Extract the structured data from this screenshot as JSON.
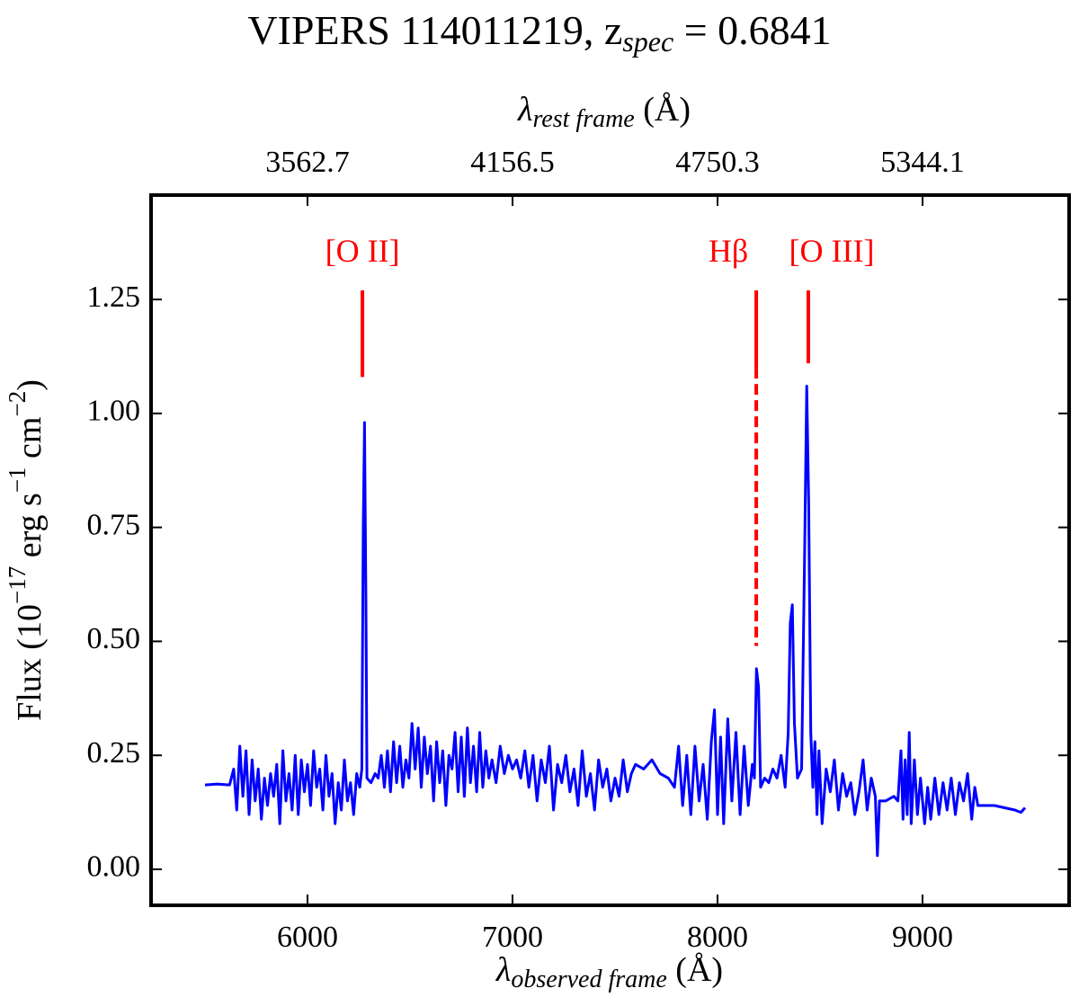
{
  "chart_data": {
    "type": "line",
    "title": [
      "VIPERS 114011219, z",
      "spec",
      " = 0.6841"
    ],
    "xlabel": [
      "λ",
      "observed frame",
      " (Å)"
    ],
    "x2label": [
      "λ",
      "rest frame",
      " (Å)"
    ],
    "ylabel": [
      "Flux (10",
      "−17",
      " erg s",
      "−1",
      " cm",
      "−2",
      ")"
    ],
    "xlim": [
      5237,
      9715
    ],
    "xticks": [
      6000,
      7000,
      8000,
      9000
    ],
    "x2lim": [
      3109.6,
      5768.6
    ],
    "x2ticks": [
      3562.7,
      4156.5,
      4750.3,
      5344.1
    ],
    "ylim": [
      -0.079,
      1.479
    ],
    "yticks": [
      {
        "value": 0,
        "label": "0.00"
      },
      {
        "value": 0.25,
        "label": "0.25"
      },
      {
        "value": 0.5,
        "label": "0.50"
      },
      {
        "value": 0.75,
        "label": "0.75"
      },
      {
        "value": 1,
        "label": "1.00"
      },
      {
        "value": 1.25,
        "label": "1.25"
      }
    ],
    "color": "#0000ff",
    "annotation_color": "#ff0000",
    "annotations": [
      {
        "text": "[O II]",
        "x": 6268,
        "y_top": 1.27,
        "y_bottom": 1.08
      },
      {
        "text": "Hβ",
        "x": 8189,
        "y_top": 1.27,
        "y_bottom": 1.1,
        "dashed_to": 0.49
      },
      {
        "text": "[O III]",
        "x": 8443,
        "y_top": 1.27,
        "y_bottom": 1.11
      }
    ],
    "x": [
      5500,
      5560,
      5620,
      5640,
      5655,
      5670,
      5685,
      5700,
      5715,
      5730,
      5745,
      5760,
      5775,
      5790,
      5805,
      5820,
      5835,
      5850,
      5865,
      5880,
      5895,
      5910,
      5925,
      5940,
      5955,
      5970,
      5985,
      6000,
      6015,
      6030,
      6045,
      6060,
      6075,
      6090,
      6105,
      6120,
      6135,
      6150,
      6165,
      6180,
      6195,
      6210,
      6225,
      6240,
      6255,
      6265,
      6272,
      6278,
      6285,
      6290,
      6310,
      6330,
      6345,
      6360,
      6375,
      6390,
      6405,
      6420,
      6435,
      6450,
      6465,
      6480,
      6495,
      6510,
      6525,
      6540,
      6555,
      6570,
      6585,
      6600,
      6615,
      6630,
      6645,
      6660,
      6675,
      6690,
      6705,
      6720,
      6735,
      6750,
      6765,
      6780,
      6795,
      6810,
      6825,
      6840,
      6855,
      6870,
      6885,
      6900,
      6920,
      6940,
      6960,
      6980,
      7000,
      7020,
      7040,
      7060,
      7080,
      7100,
      7120,
      7140,
      7160,
      7180,
      7200,
      7220,
      7240,
      7260,
      7280,
      7300,
      7320,
      7340,
      7360,
      7380,
      7400,
      7420,
      7440,
      7460,
      7480,
      7500,
      7520,
      7540,
      7560,
      7580,
      7600,
      7640,
      7680,
      7720,
      7760,
      7790,
      7810,
      7830,
      7850,
      7870,
      7890,
      7910,
      7930,
      7950,
      7970,
      7985,
      8000,
      8015,
      8030,
      8050,
      8070,
      8090,
      8110,
      8130,
      8150,
      8170,
      8180,
      8190,
      8200,
      8210,
      8230,
      8250,
      8270,
      8290,
      8310,
      8330,
      8345,
      8355,
      8365,
      8375,
      8390,
      8410,
      8425,
      8435,
      8445,
      8455,
      8465,
      8475,
      8485,
      8495,
      8510,
      8530,
      8550,
      8570,
      8590,
      8610,
      8630,
      8650,
      8670,
      8690,
      8710,
      8730,
      8750,
      8770,
      8780,
      8790,
      8820,
      8860,
      8880,
      8895,
      8905,
      8915,
      8925,
      8935,
      8945,
      8960,
      8975,
      8990,
      9010,
      9025,
      9040,
      9060,
      9080,
      9100,
      9120,
      9140,
      9160,
      9180,
      9200,
      9220,
      9240,
      9255,
      9270,
      9290,
      9350,
      9400,
      9450,
      9480,
      9500
    ],
    "values": [
      0.185,
      0.187,
      0.185,
      0.22,
      0.13,
      0.27,
      0.16,
      0.26,
      0.12,
      0.24,
      0.15,
      0.22,
      0.11,
      0.2,
      0.14,
      0.21,
      0.16,
      0.23,
      0.1,
      0.26,
      0.15,
      0.21,
      0.13,
      0.25,
      0.12,
      0.24,
      0.17,
      0.23,
      0.14,
      0.26,
      0.18,
      0.22,
      0.13,
      0.25,
      0.16,
      0.21,
      0.1,
      0.19,
      0.13,
      0.24,
      0.15,
      0.19,
      0.12,
      0.21,
      0.18,
      0.22,
      0.75,
      0.98,
      0.6,
      0.2,
      0.19,
      0.21,
      0.2,
      0.25,
      0.18,
      0.26,
      0.17,
      0.28,
      0.19,
      0.27,
      0.18,
      0.24,
      0.2,
      0.32,
      0.22,
      0.31,
      0.18,
      0.29,
      0.21,
      0.27,
      0.15,
      0.28,
      0.19,
      0.26,
      0.14,
      0.25,
      0.22,
      0.3,
      0.17,
      0.29,
      0.16,
      0.31,
      0.19,
      0.27,
      0.17,
      0.3,
      0.18,
      0.26,
      0.2,
      0.24,
      0.19,
      0.27,
      0.21,
      0.25,
      0.22,
      0.24,
      0.2,
      0.26,
      0.18,
      0.25,
      0.15,
      0.24,
      0.19,
      0.27,
      0.13,
      0.23,
      0.19,
      0.25,
      0.17,
      0.22,
      0.14,
      0.26,
      0.16,
      0.21,
      0.13,
      0.24,
      0.18,
      0.22,
      0.15,
      0.2,
      0.16,
      0.24,
      0.17,
      0.21,
      0.23,
      0.22,
      0.24,
      0.21,
      0.2,
      0.18,
      0.27,
      0.14,
      0.25,
      0.12,
      0.27,
      0.15,
      0.23,
      0.11,
      0.28,
      0.35,
      0.12,
      0.29,
      0.1,
      0.33,
      0.15,
      0.3,
      0.12,
      0.27,
      0.14,
      0.23,
      0.2,
      0.44,
      0.4,
      0.18,
      0.2,
      0.19,
      0.22,
      0.2,
      0.25,
      0.18,
      0.3,
      0.54,
      0.58,
      0.32,
      0.2,
      0.22,
      0.7,
      1.06,
      0.8,
      0.3,
      0.18,
      0.28,
      0.12,
      0.26,
      0.1,
      0.22,
      0.17,
      0.24,
      0.13,
      0.21,
      0.16,
      0.19,
      0.12,
      0.17,
      0.24,
      0.13,
      0.2,
      0.16,
      0.03,
      0.15,
      0.15,
      0.16,
      0.15,
      0.26,
      0.11,
      0.24,
      0.12,
      0.3,
      0.1,
      0.24,
      0.12,
      0.2,
      0.1,
      0.18,
      0.11,
      0.2,
      0.12,
      0.19,
      0.13,
      0.2,
      0.12,
      0.19,
      0.15,
      0.21,
      0.11,
      0.18,
      0.14,
      0.14,
      0.14,
      0.135,
      0.13,
      0.125,
      0.135
    ]
  }
}
